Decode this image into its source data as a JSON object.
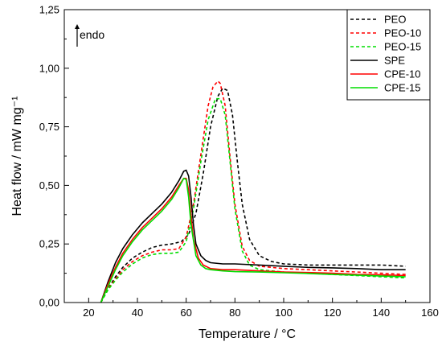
{
  "chart_data": {
    "type": "line",
    "title": "",
    "xlabel": "Temperature / °C",
    "ylabel": "Heat flow / mW mg⁻¹",
    "xlim": [
      10,
      160
    ],
    "ylim": [
      0,
      1.25
    ],
    "x_ticks": [
      "20",
      "40",
      "60",
      "80",
      "100",
      "120",
      "140",
      "160"
    ],
    "y_ticks": [
      "0,00",
      "0,25",
      "0,50",
      "0,75",
      "1,00",
      "1,25"
    ],
    "annotation": "endo",
    "legend_position": "top-right",
    "grid": false,
    "series": [
      {
        "name": "PEO",
        "color": "#000000",
        "style": "dashed",
        "x": [
          25,
          28,
          31,
          34,
          38,
          42,
          46,
          50,
          54,
          58,
          61,
          64,
          67,
          70,
          73,
          75,
          77,
          79,
          81,
          83,
          86,
          90,
          95,
          100,
          110,
          120,
          130,
          140,
          150
        ],
        "y": [
          0.0,
          0.06,
          0.11,
          0.15,
          0.19,
          0.215,
          0.235,
          0.245,
          0.25,
          0.26,
          0.29,
          0.38,
          0.55,
          0.75,
          0.88,
          0.915,
          0.905,
          0.8,
          0.6,
          0.42,
          0.27,
          0.2,
          0.175,
          0.165,
          0.16,
          0.16,
          0.16,
          0.16,
          0.155
        ]
      },
      {
        "name": "PEO-10",
        "color": "#ff0000",
        "style": "dashed",
        "x": [
          25,
          28,
          31,
          34,
          38,
          42,
          46,
          50,
          54,
          57,
          60,
          63,
          66,
          69,
          71,
          73,
          74,
          76,
          78,
          80,
          83,
          86,
          90,
          95,
          100,
          110,
          120,
          130,
          140,
          150
        ],
        "y": [
          0.0,
          0.06,
          0.1,
          0.14,
          0.175,
          0.2,
          0.215,
          0.225,
          0.225,
          0.23,
          0.28,
          0.42,
          0.63,
          0.84,
          0.92,
          0.945,
          0.935,
          0.84,
          0.62,
          0.42,
          0.24,
          0.18,
          0.155,
          0.15,
          0.145,
          0.14,
          0.135,
          0.13,
          0.125,
          0.12
        ]
      },
      {
        "name": "PEO-15",
        "color": "#00dd00",
        "style": "dashed",
        "x": [
          25,
          28,
          31,
          34,
          38,
          42,
          46,
          50,
          54,
          57,
          60,
          63,
          66,
          69,
          72,
          74,
          76,
          78,
          80,
          83,
          86,
          90,
          95,
          100,
          110,
          120,
          130,
          140,
          150
        ],
        "y": [
          0.0,
          0.055,
          0.095,
          0.13,
          0.165,
          0.19,
          0.205,
          0.21,
          0.21,
          0.215,
          0.26,
          0.4,
          0.6,
          0.78,
          0.87,
          0.87,
          0.8,
          0.6,
          0.4,
          0.22,
          0.16,
          0.14,
          0.135,
          0.13,
          0.125,
          0.12,
          0.115,
          0.11,
          0.105
        ]
      },
      {
        "name": "SPE",
        "color": "#000000",
        "style": "solid",
        "x": [
          25,
          28,
          31,
          34,
          38,
          42,
          46,
          50,
          54,
          57,
          59,
          60,
          61,
          62,
          63,
          64,
          66,
          68,
          70,
          75,
          80,
          90,
          100,
          110,
          120,
          130,
          140,
          150
        ],
        "y": [
          0.0,
          0.09,
          0.17,
          0.23,
          0.29,
          0.34,
          0.38,
          0.42,
          0.47,
          0.52,
          0.56,
          0.565,
          0.54,
          0.45,
          0.33,
          0.25,
          0.2,
          0.18,
          0.17,
          0.165,
          0.165,
          0.16,
          0.155,
          0.15,
          0.148,
          0.145,
          0.14,
          0.14
        ]
      },
      {
        "name": "CPE-10",
        "color": "#ff0000",
        "style": "solid",
        "x": [
          25,
          28,
          31,
          34,
          38,
          42,
          46,
          50,
          54,
          57,
          59,
          60,
          61,
          62,
          63,
          65,
          67,
          70,
          75,
          80,
          90,
          100,
          110,
          120,
          130,
          140,
          150
        ],
        "y": [
          0.0,
          0.08,
          0.15,
          0.21,
          0.27,
          0.32,
          0.36,
          0.4,
          0.45,
          0.5,
          0.53,
          0.53,
          0.48,
          0.37,
          0.27,
          0.19,
          0.16,
          0.145,
          0.14,
          0.14,
          0.135,
          0.13,
          0.128,
          0.125,
          0.12,
          0.118,
          0.115
        ]
      },
      {
        "name": "CPE-15",
        "color": "#00dd00",
        "style": "solid",
        "x": [
          25,
          28,
          31,
          34,
          38,
          42,
          46,
          50,
          54,
          57,
          59,
          60,
          61,
          62,
          64,
          66,
          68,
          70,
          75,
          80,
          90,
          100,
          110,
          120,
          130,
          140,
          150
        ],
        "y": [
          0.0,
          0.07,
          0.14,
          0.2,
          0.26,
          0.31,
          0.35,
          0.39,
          0.44,
          0.49,
          0.53,
          0.525,
          0.45,
          0.33,
          0.2,
          0.16,
          0.145,
          0.14,
          0.135,
          0.132,
          0.13,
          0.127,
          0.124,
          0.12,
          0.117,
          0.113,
          0.11
        ]
      }
    ]
  }
}
